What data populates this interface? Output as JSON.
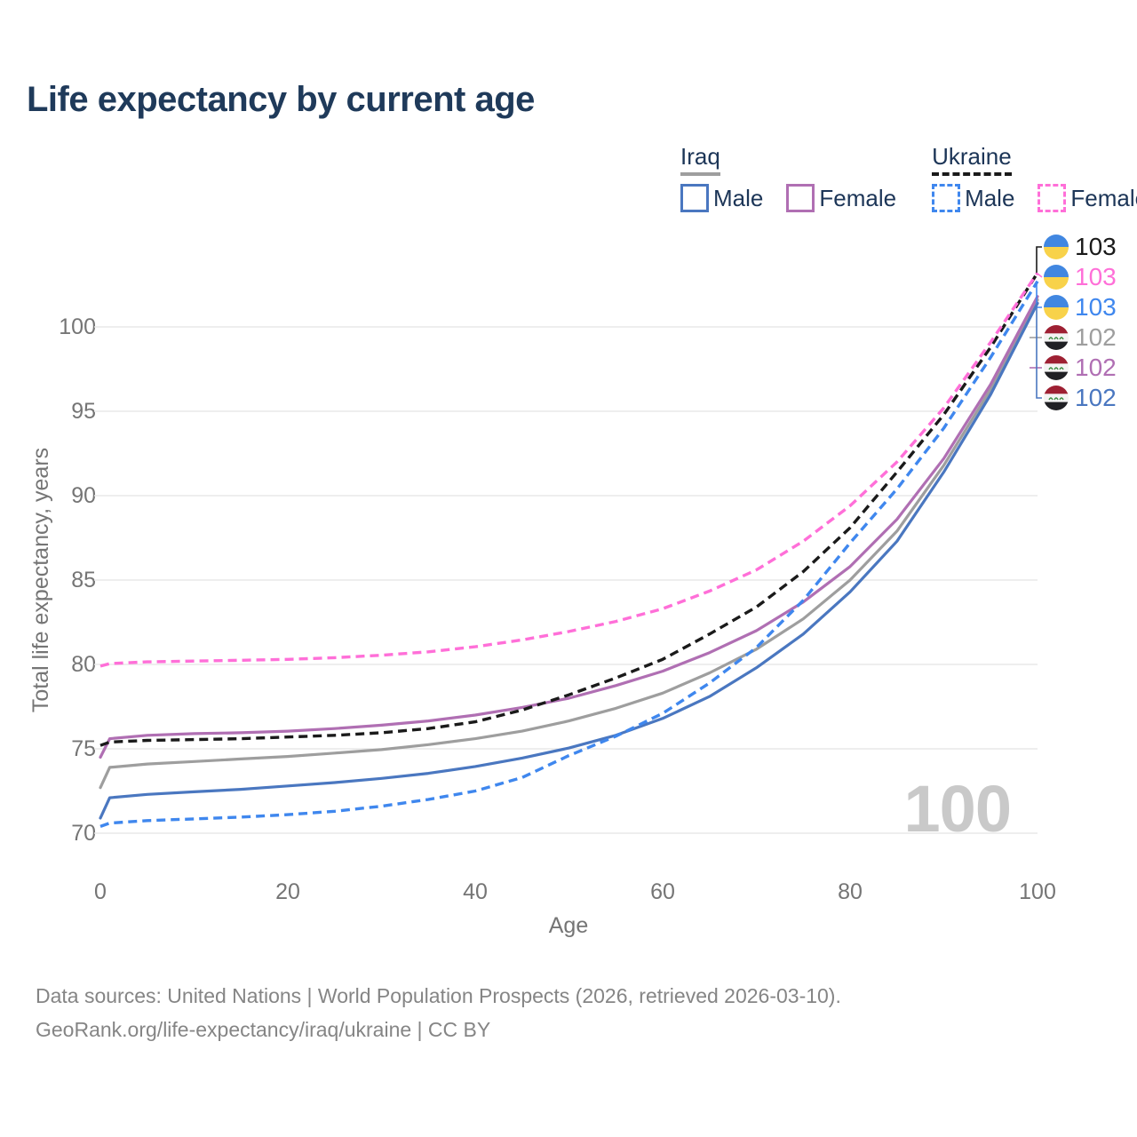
{
  "title": "Life expectancy by current age",
  "watermark": "100",
  "legend": {
    "groups": [
      {
        "label": "Iraq",
        "line_style": "solid",
        "line_color": "#9e9e9e",
        "items": [
          {
            "label": "Male",
            "color": "#4a77c0",
            "style": "solid"
          },
          {
            "label": "Female",
            "color": "#b06fb3",
            "style": "solid"
          }
        ]
      },
      {
        "label": "Ukraine",
        "line_style": "dashed",
        "line_color": "#1a1a1a",
        "items": [
          {
            "label": "Male",
            "color": "#3f87ee",
            "style": "dashed"
          },
          {
            "label": "Female",
            "color": "#ff6fd8",
            "style": "dashed"
          }
        ]
      }
    ]
  },
  "y_axis": {
    "title": "Total life expectancy, years",
    "ticks": [
      70,
      75,
      80,
      85,
      90,
      95,
      100
    ]
  },
  "x_axis": {
    "title": "Age",
    "ticks": [
      0,
      20,
      40,
      60,
      80,
      100
    ]
  },
  "end_labels": [
    {
      "value": "103",
      "color": "#1a1a1a",
      "flag": "ukraine",
      "series": "Ukraine Both sexes"
    },
    {
      "value": "103",
      "color": "#ff6fd8",
      "flag": "ukraine",
      "series": "Ukraine Female"
    },
    {
      "value": "103",
      "color": "#3f87ee",
      "flag": "ukraine",
      "series": "Ukraine Male"
    },
    {
      "value": "102",
      "color": "#9e9e9e",
      "flag": "iraq",
      "series": "Iraq Both sexes"
    },
    {
      "value": "102",
      "color": "#b06fb3",
      "flag": "iraq",
      "series": "Iraq Female"
    },
    {
      "value": "102",
      "color": "#4a77c0",
      "flag": "iraq",
      "series": "Iraq Male"
    }
  ],
  "source": {
    "line1": "Data sources: United Nations | World Population Prospects (2026, retrieved 2026-03-10).",
    "line2": "GeoRank.org/life-expectancy/iraq/ukraine | CC BY"
  },
  "chart_data": {
    "type": "line",
    "title": "Life expectancy by current age",
    "xlabel": "Age",
    "ylabel": "Total life expectancy, years",
    "xlim": [
      0,
      100
    ],
    "ylim": [
      68,
      104
    ],
    "grid": "horizontal",
    "legend_position": "top-right",
    "x": [
      0,
      1,
      5,
      10,
      15,
      20,
      25,
      30,
      35,
      40,
      45,
      50,
      55,
      60,
      65,
      70,
      75,
      80,
      85,
      90,
      95,
      100
    ],
    "series": [
      {
        "name": "Iraq Both sexes",
        "country": "Iraq",
        "sex": "Both",
        "style": "solid",
        "color": "#9e9e9e",
        "values": [
          72.7,
          73.9,
          74.1,
          74.25,
          74.4,
          74.55,
          74.75,
          74.95,
          75.25,
          75.6,
          76.05,
          76.65,
          77.4,
          78.3,
          79.5,
          80.9,
          82.7,
          85.0,
          87.9,
          91.8,
          96.3,
          101.6
        ]
      },
      {
        "name": "Iraq Female",
        "country": "Iraq",
        "sex": "Female",
        "style": "solid",
        "color": "#b06fb3",
        "values": [
          74.5,
          75.6,
          75.8,
          75.9,
          75.95,
          76.05,
          76.2,
          76.4,
          76.65,
          77.0,
          77.45,
          78.0,
          78.75,
          79.6,
          80.7,
          82.0,
          83.7,
          85.8,
          88.6,
          92.2,
          96.6,
          101.8
        ]
      },
      {
        "name": "Iraq Male",
        "country": "Iraq",
        "sex": "Male",
        "style": "solid",
        "color": "#4a77c0",
        "values": [
          70.9,
          72.1,
          72.3,
          72.45,
          72.6,
          72.8,
          73.0,
          73.25,
          73.55,
          73.95,
          74.45,
          75.05,
          75.8,
          76.8,
          78.1,
          79.8,
          81.8,
          84.3,
          87.3,
          91.4,
          96.0,
          101.4
        ]
      },
      {
        "name": "Ukraine Both sexes",
        "country": "Ukraine",
        "sex": "Both",
        "style": "dashed",
        "color": "#1a1a1a",
        "values": [
          75.2,
          75.4,
          75.5,
          75.55,
          75.6,
          75.7,
          75.8,
          75.95,
          76.2,
          76.6,
          77.3,
          78.2,
          79.2,
          80.3,
          81.8,
          83.4,
          85.5,
          88.1,
          91.4,
          94.8,
          98.8,
          103.2
        ]
      },
      {
        "name": "Ukraine Male",
        "country": "Ukraine",
        "sex": "Male",
        "style": "dashed",
        "color": "#3f87ee",
        "values": [
          70.4,
          70.6,
          70.75,
          70.85,
          70.95,
          71.1,
          71.3,
          71.6,
          72.0,
          72.5,
          73.3,
          74.6,
          75.75,
          77.1,
          78.9,
          81.0,
          83.8,
          87.2,
          90.4,
          94.0,
          98.2,
          102.7
        ]
      },
      {
        "name": "Ukraine Female",
        "country": "Ukraine",
        "sex": "Female",
        "style": "dashed",
        "color": "#ff6fd8",
        "values": [
          79.9,
          80.05,
          80.15,
          80.2,
          80.25,
          80.3,
          80.4,
          80.55,
          80.75,
          81.05,
          81.45,
          81.95,
          82.55,
          83.3,
          84.35,
          85.6,
          87.3,
          89.4,
          92.0,
          95.2,
          99.1,
          103.2
        ]
      }
    ]
  }
}
